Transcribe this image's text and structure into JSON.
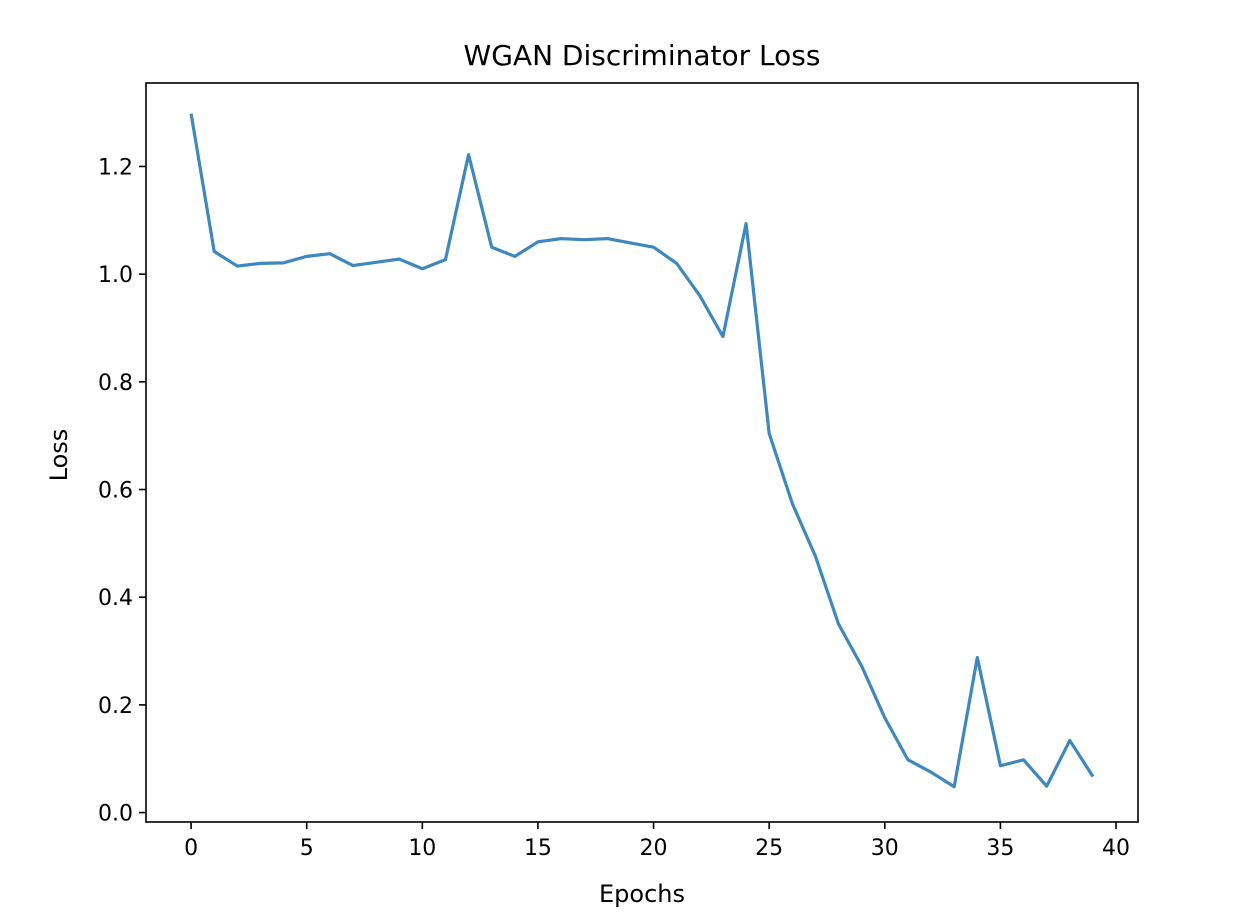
{
  "chart_data": {
    "type": "line",
    "title": "WGAN Discriminator Loss",
    "xlabel": "Epochs",
    "ylabel": "Loss",
    "xlim": [
      -1.95,
      40.95
    ],
    "ylim": [
      0.0,
      1.3
    ],
    "xticks": [
      "0",
      "5",
      "10",
      "15",
      "20",
      "25",
      "30",
      "35",
      "40"
    ],
    "yticks": [
      "0.0",
      "0.2",
      "0.4",
      "0.6",
      "0.8",
      "1.0",
      "1.2"
    ],
    "grid": false,
    "legend": "none",
    "series": [
      {
        "color": "#3f88be",
        "x": [
          0,
          1,
          2,
          3,
          4,
          5,
          6,
          7,
          8,
          9,
          10,
          11,
          12,
          13,
          14,
          15,
          16,
          17,
          18,
          19,
          20,
          21,
          22,
          23,
          24,
          25,
          26,
          27,
          28,
          29,
          30,
          31,
          32,
          33,
          34,
          35,
          36,
          37,
          38,
          39
        ],
        "values": [
          1.298,
          1.042,
          1.015,
          1.02,
          1.021,
          1.033,
          1.038,
          1.016,
          1.022,
          1.028,
          1.01,
          1.027,
          1.222,
          1.05,
          1.033,
          1.06,
          1.066,
          1.064,
          1.066,
          1.058,
          1.05,
          1.02,
          0.96,
          0.884,
          1.094,
          0.704,
          0.574,
          0.476,
          0.35,
          0.272,
          0.176,
          0.098,
          0.075,
          0.048,
          0.288,
          0.087,
          0.098,
          0.049,
          0.134,
          0.067
        ]
      }
    ]
  }
}
